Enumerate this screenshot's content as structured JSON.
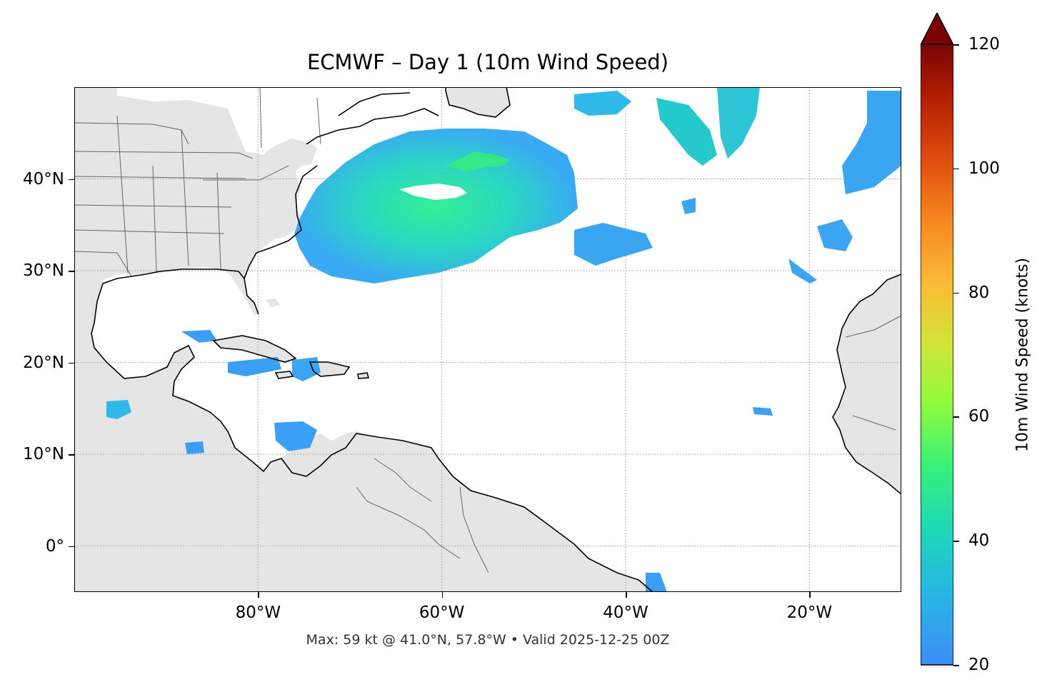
{
  "title": "ECMWF – Day 1 (10m Wind Speed)",
  "subtitle": "Max: 59 kt @ 41.0°N, 57.8°W • Valid 2025-12-25 00Z",
  "map": {
    "lon_range": [
      -100,
      -10
    ],
    "lat_range": [
      -5,
      50
    ],
    "lat_ticks": [
      {
        "value": 40,
        "label": "40°N"
      },
      {
        "value": 30,
        "label": "30°N"
      },
      {
        "value": 20,
        "label": "20°N"
      },
      {
        "value": 10,
        "label": "10°N"
      },
      {
        "value": 0,
        "label": "0°"
      }
    ],
    "lon_ticks": [
      {
        "value": -80,
        "label": "80°W"
      },
      {
        "value": -60,
        "label": "60°W"
      },
      {
        "value": -40,
        "label": "40°W"
      },
      {
        "value": -20,
        "label": "20°W"
      }
    ],
    "gridlines": true,
    "land_color": "#e5e5e5",
    "ocean_color": "#ffffff",
    "coastline_color": "#000000",
    "border_color": "#666666"
  },
  "colorbar": {
    "label": "10m Wind Speed (knots)",
    "min": 20,
    "max": 120,
    "extend": "max",
    "ticks": [
      {
        "value": 20,
        "label": "20"
      },
      {
        "value": 40,
        "label": "40"
      },
      {
        "value": 60,
        "label": "60"
      },
      {
        "value": 80,
        "label": "80"
      },
      {
        "value": 100,
        "label": "100"
      },
      {
        "value": 120,
        "label": "120"
      }
    ],
    "colormap": "turbo"
  },
  "max_wind": {
    "value_kt": 59,
    "lat": 41.0,
    "lon": -57.8
  }
}
